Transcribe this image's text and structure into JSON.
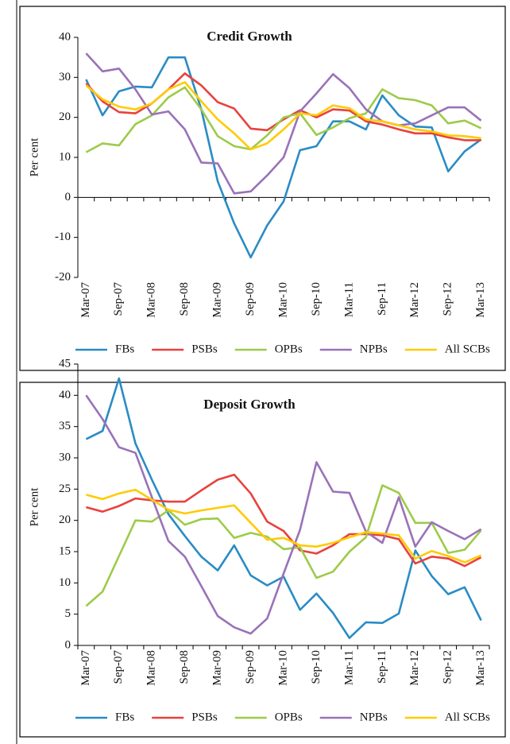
{
  "chart_data": [
    {
      "type": "line",
      "title": "Credit Growth",
      "y_label": "Per cent",
      "categories": [
        "Mar-07",
        null,
        "Sep-07",
        null,
        "Mar-08",
        null,
        "Sep-08",
        null,
        "Mar-09",
        null,
        "Sep-09",
        null,
        "Mar-10",
        null,
        "Sep-10",
        null,
        "Mar-11",
        null,
        "Sep-11",
        null,
        "Mar-12",
        null,
        "Sep-12",
        null,
        "Mar-13"
      ],
      "ylim": [
        -20,
        40
      ],
      "yticks": [
        -20,
        -10,
        0,
        10,
        20,
        30,
        40
      ],
      "series": [
        {
          "name": "FBs",
          "color": "#2a8cc4",
          "values": [
            29.5,
            20.5,
            26.5,
            27.7,
            27.5,
            35,
            35,
            22,
            4,
            -6.5,
            -15,
            -7,
            -1,
            11.8,
            12.8,
            19,
            19,
            17,
            25.5,
            20.5,
            17.7,
            17.5,
            6.5,
            11.5,
            14.5
          ]
        },
        {
          "name": "PSBs",
          "color": "#e8423c",
          "values": [
            28.5,
            24,
            21.3,
            21,
            23.5,
            27,
            31,
            28,
            23.8,
            22.2,
            17.2,
            16.8,
            19.5,
            21.8,
            20,
            22,
            21.7,
            19,
            18.2,
            17,
            16,
            16,
            15,
            14.3,
            14.3
          ]
        },
        {
          "name": "OPBs",
          "color": "#9dcb4a",
          "values": [
            11.3,
            13.5,
            13,
            18.3,
            20.5,
            25,
            27.5,
            22,
            15.3,
            12.8,
            12,
            15.5,
            20,
            21,
            15.6,
            17.5,
            19.8,
            21,
            27,
            24.8,
            24.3,
            23,
            18.5,
            19.2,
            17.3
          ]
        },
        {
          "name": "NPBs",
          "color": "#9a72b8",
          "values": [
            36,
            31.5,
            32.2,
            27,
            20.7,
            21.5,
            17,
            8.7,
            8.5,
            1,
            1.5,
            5.5,
            10,
            21.5,
            26,
            30.8,
            27.3,
            22,
            19,
            18,
            18.5,
            20.5,
            22.5,
            22.5,
            19.2
          ]
        },
        {
          "name": "All SCBs",
          "color": "#ffcb05",
          "values": [
            28,
            24.5,
            22.7,
            22,
            23.5,
            27,
            28.8,
            24,
            19.5,
            16,
            12,
            13.5,
            17,
            21,
            20.5,
            23,
            22.3,
            19.5,
            19,
            18,
            17,
            16.5,
            15.5,
            15.3,
            14.8
          ]
        }
      ]
    },
    {
      "type": "line",
      "title": "Deposit Growth",
      "y_label": "Per cent",
      "categories": [
        "Mar-07",
        null,
        "Sep-07",
        null,
        "Mar-08",
        null,
        "Sep-08",
        null,
        "Mar-09",
        null,
        "Sep-09",
        null,
        "Mar-10",
        null,
        "Sep-10",
        null,
        "Mar-11",
        null,
        "Sep-11",
        null,
        "Mar-12",
        null,
        "Sep-12",
        null,
        "Mar-13"
      ],
      "ylim": [
        0,
        45
      ],
      "yticks": [
        0,
        5,
        10,
        15,
        20,
        25,
        30,
        35,
        40,
        45
      ],
      "series": [
        {
          "name": "FBs",
          "color": "#2a8cc4",
          "values": [
            33,
            34.3,
            42.7,
            32.3,
            26.5,
            21,
            17.5,
            14.2,
            12,
            16,
            11.2,
            9.6,
            11,
            5.7,
            8.3,
            5.2,
            1.2,
            3.7,
            3.6,
            5.1,
            15.2,
            11.1,
            8.2,
            9.3,
            4
          ]
        },
        {
          "name": "PSBs",
          "color": "#e8423c",
          "values": [
            22.1,
            21.4,
            22.3,
            23.5,
            23.2,
            23,
            23,
            24.8,
            26.5,
            27.3,
            24.3,
            19.8,
            18.3,
            15.2,
            14.7,
            16,
            17.8,
            17.8,
            17.6,
            17,
            13.1,
            14.2,
            13.9,
            12.7,
            14.1
          ]
        },
        {
          "name": "OPBs",
          "color": "#9dcb4a",
          "values": [
            6.3,
            8.6,
            14.3,
            20,
            19.8,
            21.6,
            19.3,
            20.2,
            20.3,
            17.2,
            18,
            17.4,
            15.4,
            15.7,
            10.8,
            11.8,
            15,
            17.3,
            25.6,
            24.4,
            19.6,
            19.6,
            14.8,
            15.3,
            18.4
          ]
        },
        {
          "name": "NPBs",
          "color": "#9a72b8",
          "values": [
            40,
            36.2,
            31.7,
            30.8,
            23.7,
            16.7,
            14.2,
            9.5,
            4.7,
            2.9,
            1.9,
            4.3,
            11.5,
            18.5,
            29.3,
            24.6,
            24.4,
            18.2,
            16.4,
            23.7,
            15.8,
            19.7,
            18.3,
            17,
            18.6
          ]
        },
        {
          "name": "All SCBs",
          "color": "#ffcb05",
          "values": [
            24.1,
            23.4,
            24.3,
            24.9,
            23.3,
            21.7,
            21.1,
            21.6,
            22,
            22.4,
            19.6,
            16.9,
            17.2,
            16,
            15.8,
            16.4,
            17.3,
            18.1,
            17.9,
            17.6,
            13.9,
            15.1,
            14.3,
            13.3,
            14.4
          ]
        }
      ]
    }
  ]
}
